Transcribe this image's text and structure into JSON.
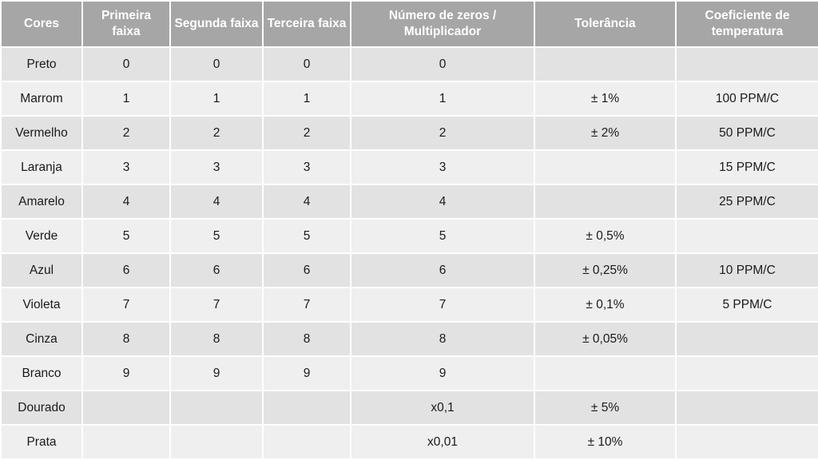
{
  "table": {
    "headers": [
      "Cores",
      "Primeira faixa",
      "Segunda faixa",
      "Terceira faixa",
      "Número de zeros / Multiplicador",
      "Tolerância",
      "Coeficiente de temperatura"
    ],
    "rows": [
      [
        "Preto",
        "0",
        "0",
        "0",
        "0",
        "",
        ""
      ],
      [
        "Marrom",
        "1",
        "1",
        "1",
        "1",
        "± 1%",
        "100 PPM/C"
      ],
      [
        "Vermelho",
        "2",
        "2",
        "2",
        "2",
        "± 2%",
        "50 PPM/C"
      ],
      [
        "Laranja",
        "3",
        "3",
        "3",
        "3",
        "",
        "15 PPM/C"
      ],
      [
        "Amarelo",
        "4",
        "4",
        "4",
        "4",
        "",
        "25 PPM/C"
      ],
      [
        "Verde",
        "5",
        "5",
        "5",
        "5",
        "± 0,5%",
        ""
      ],
      [
        "Azul",
        "6",
        "6",
        "6",
        "6",
        "± 0,25%",
        "10 PPM/C"
      ],
      [
        "Violeta",
        "7",
        "7",
        "7",
        "7",
        "± 0,1%",
        "5 PPM/C"
      ],
      [
        "Cinza",
        "8",
        "8",
        "8",
        "8",
        "± 0,05%",
        ""
      ],
      [
        "Branco",
        "9",
        "9",
        "9",
        "9",
        "",
        ""
      ],
      [
        "Dourado",
        "",
        "",
        "",
        "x0,1",
        "± 5%",
        ""
      ],
      [
        "Prata",
        "",
        "",
        "",
        "x0,01",
        "± 10%",
        ""
      ]
    ]
  },
  "colors": {
    "header_bg": "#a6a6a6",
    "row_dark": "#e2e2e2",
    "row_light": "#efefef"
  }
}
